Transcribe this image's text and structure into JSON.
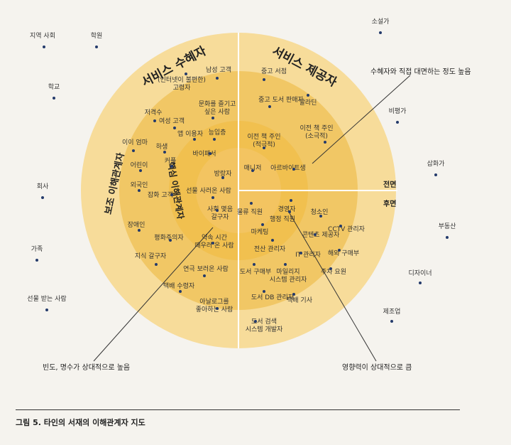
{
  "title_left": "서비스 수혜자",
  "title_right": "서비스 제공자",
  "ring_label_outer": "보조 이해관계자",
  "ring_label_inner": "핵심 이해관계자",
  "front_label": "전면",
  "back_label": "후면",
  "callout_top_right": "수혜자와 직접 대면하는 정도 높음",
  "callout_bottom_left": "빈도, 명수가 상대적으로 높음",
  "callout_bottom_right": "영향력이 상대적으로 큼",
  "caption": "그림 5. 타인의 서재의 이해관계자 지도",
  "colors": {
    "outer": "#f7dc9a",
    "middle": "#f1c765",
    "inner": "#f0b93e",
    "core": "#f2c862",
    "dot": "#243a6b"
  },
  "outside_items": [
    {
      "id": "o1",
      "label": "지역 사회"
    },
    {
      "id": "o2",
      "label": "학원"
    },
    {
      "id": "o3",
      "label": "학교"
    },
    {
      "id": "o4",
      "label": "회사"
    },
    {
      "id": "o5",
      "label": "가족"
    },
    {
      "id": "o6",
      "label": "선물 받는 사람"
    },
    {
      "id": "o7",
      "label": "소설가"
    },
    {
      "id": "o8",
      "label": "비평가"
    },
    {
      "id": "o9",
      "label": "삽화가"
    },
    {
      "id": "o10",
      "label": "부동산"
    },
    {
      "id": "o11",
      "label": "디자이너"
    },
    {
      "id": "o12",
      "label": "제조업"
    }
  ],
  "inside_items": [
    {
      "id": "i1",
      "label": "남성 고객"
    },
    {
      "id": "i2",
      "label": "(인터넷이 불편한)\n고령자"
    },
    {
      "id": "i3",
      "label": "문화를 즐기고\n싶은 사람"
    },
    {
      "id": "i4",
      "label": "저격수"
    },
    {
      "id": "i5",
      "label": "여성 고객"
    },
    {
      "id": "i6",
      "label": "앱 이용자"
    },
    {
      "id": "i7",
      "label": "능입층"
    },
    {
      "id": "i8",
      "label": "이이 엄마"
    },
    {
      "id": "i9",
      "label": "하생"
    },
    {
      "id": "i10",
      "label": "바이패서"
    },
    {
      "id": "i11",
      "label": "커플"
    },
    {
      "id": "i12",
      "label": "어린이"
    },
    {
      "id": "i13",
      "label": "방랑자"
    },
    {
      "id": "i14",
      "label": "외국인"
    },
    {
      "id": "i15",
      "label": "잡화 고객"
    },
    {
      "id": "i16",
      "label": "선물 사러온 사람"
    },
    {
      "id": "i17",
      "label": "사회 몇음\n갈구자"
    },
    {
      "id": "i18",
      "label": "장애인"
    },
    {
      "id": "i19",
      "label": "평화주의자"
    },
    {
      "id": "i20",
      "label": "약속 시간\n때우러 온 사람"
    },
    {
      "id": "i21",
      "label": "지식 갈구자"
    },
    {
      "id": "i22",
      "label": "연극 보러온 사람"
    },
    {
      "id": "i23",
      "label": "택배 수령자"
    },
    {
      "id": "i24",
      "label": "아날로그를\n좋아하는 사람"
    },
    {
      "id": "i25",
      "label": "중고 서점"
    },
    {
      "id": "i26",
      "label": "중고 도서 판매자"
    },
    {
      "id": "i27",
      "label": "알라딘"
    },
    {
      "id": "i28",
      "label": "이전 책 주인\n(적극적)"
    },
    {
      "id": "i29",
      "label": "이전 책 주인\n(소극적)"
    },
    {
      "id": "i30",
      "label": "매니저"
    },
    {
      "id": "i31",
      "label": "아르바이트생"
    },
    {
      "id": "i32",
      "label": "물류 직원"
    },
    {
      "id": "i33",
      "label": "경영자"
    },
    {
      "id": "i34",
      "label": "청소인"
    },
    {
      "id": "i35",
      "label": "행정 직원"
    },
    {
      "id": "i36",
      "label": "CCTV 관리자"
    },
    {
      "id": "i37",
      "label": "마케팅"
    },
    {
      "id": "i38",
      "label": "콘텐츠 제공자"
    },
    {
      "id": "i39",
      "label": "전산 관리자"
    },
    {
      "id": "i40",
      "label": "해외 구매부"
    },
    {
      "id": "i41",
      "label": "IT 관리자"
    },
    {
      "id": "i42",
      "label": "주차 요원"
    },
    {
      "id": "i43",
      "label": "도서 구매부"
    },
    {
      "id": "i44",
      "label": "마일리지\n시스템 관리자"
    },
    {
      "id": "i45",
      "label": "도서 DB 관리자"
    },
    {
      "id": "i46",
      "label": "택배 기사"
    },
    {
      "id": "i47",
      "label": "도서 검색\n시스템 개발자"
    }
  ]
}
